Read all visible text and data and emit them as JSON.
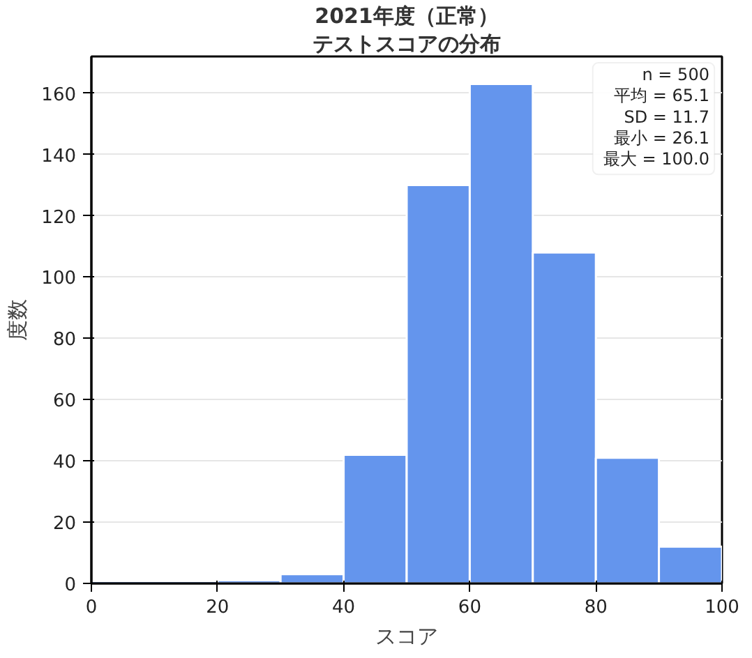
{
  "chart_data": {
    "type": "histogram",
    "title": "2021年度（正常）",
    "subtitle": "テストスコアの分布",
    "xlabel": "スコア",
    "ylabel": "度数",
    "bins": [
      0,
      10,
      20,
      30,
      40,
      50,
      60,
      70,
      80,
      90,
      100
    ],
    "values": [
      0,
      0,
      1,
      3,
      42,
      130,
      163,
      108,
      41,
      12
    ],
    "color": "#6495ed",
    "xlim": [
      0,
      100
    ],
    "xticks": [
      0,
      20,
      40,
      60,
      80,
      100
    ],
    "ylim": [
      0,
      172
    ],
    "yticks": [
      0,
      20,
      40,
      60,
      80,
      100,
      120,
      140,
      160
    ],
    "grid": "y",
    "annotations": [
      "n = 500",
      "平均 = 65.1",
      "SD = 11.7",
      "最小 = 26.1",
      "最大 = 100.0"
    ]
  }
}
